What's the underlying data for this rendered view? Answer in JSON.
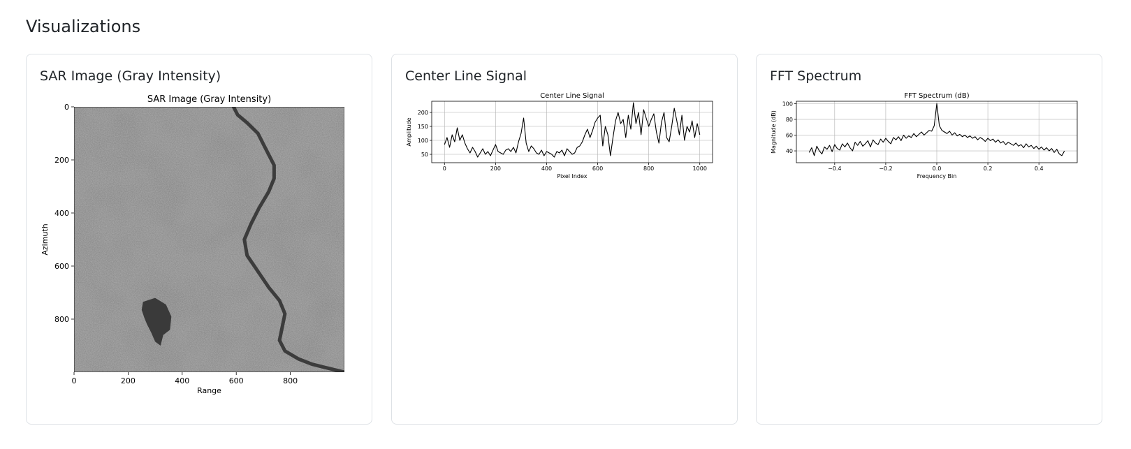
{
  "page": {
    "section_title": "Visualizations"
  },
  "cards": [
    {
      "id": "sar",
      "title": "SAR Image (Gray Intensity)"
    },
    {
      "id": "center",
      "title": "Center Line Signal"
    },
    {
      "id": "fft",
      "title": "FFT Spectrum"
    }
  ],
  "chart_data": [
    {
      "type": "heatmap",
      "title": "SAR Image (Gray Intensity)",
      "xlabel": "Range",
      "ylabel": "Azimuth",
      "xlim": [
        0,
        1000
      ],
      "ylim": [
        1000,
        0
      ],
      "xticks": [
        0,
        200,
        400,
        600,
        800
      ],
      "yticks": [
        0,
        200,
        400,
        600,
        800
      ],
      "colormap": "gray",
      "grid": false,
      "features": {
        "river": {
          "x": [
            590,
            605,
            640,
            680,
            700,
            720,
            740,
            740,
            720,
            685,
            655,
            630,
            640,
            680,
            720,
            760,
            780,
            770,
            760,
            780,
            830,
            880,
            920,
            960,
            1000
          ],
          "y": [
            0,
            30,
            60,
            100,
            140,
            180,
            220,
            270,
            320,
            380,
            440,
            500,
            560,
            620,
            680,
            730,
            780,
            830,
            880,
            920,
            950,
            970,
            980,
            990,
            1000
          ]
        },
        "lake": {
          "x": [
            255,
            300,
            340,
            360,
            355,
            330,
            320,
            300,
            285,
            270,
            260,
            250,
            255
          ],
          "y": [
            735,
            720,
            745,
            790,
            840,
            860,
            900,
            885,
            850,
            820,
            795,
            765,
            735
          ]
        }
      }
    },
    {
      "type": "line",
      "title": "Center Line Signal",
      "xlabel": "Pixel Index",
      "ylabel": "Amplitude",
      "xlim": [
        -50,
        1050
      ],
      "ylim": [
        20,
        240
      ],
      "xticks": [
        0,
        200,
        400,
        600,
        800,
        1000
      ],
      "yticks": [
        50,
        100,
        150,
        200
      ],
      "grid": true,
      "series": [
        {
          "color": "#000000",
          "x_start": 0,
          "x_step": 10,
          "values": [
            85,
            110,
            75,
            120,
            95,
            145,
            100,
            120,
            90,
            70,
            55,
            75,
            60,
            40,
            55,
            70,
            50,
            60,
            45,
            65,
            85,
            60,
            55,
            50,
            65,
            70,
            60,
            75,
            55,
            95,
            125,
            180,
            90,
            60,
            80,
            70,
            55,
            50,
            65,
            45,
            60,
            55,
            50,
            40,
            60,
            55,
            65,
            45,
            70,
            60,
            50,
            55,
            75,
            80,
            95,
            120,
            140,
            110,
            135,
            165,
            180,
            190,
            80,
            150,
            120,
            45,
            110,
            170,
            200,
            160,
            175,
            110,
            190,
            140,
            235,
            160,
            200,
            120,
            210,
            180,
            150,
            175,
            195,
            130,
            90,
            165,
            200,
            110,
            95,
            150,
            215,
            170,
            120,
            190,
            100,
            150,
            130,
            170,
            110,
            160,
            120
          ]
        }
      ]
    },
    {
      "type": "line",
      "title": "FFT Spectrum (dB)",
      "xlabel": "Frequency Bin",
      "ylabel": "Magnitude (dB)",
      "xlim": [
        -0.55,
        0.55
      ],
      "ylim": [
        25,
        103
      ],
      "xticks": [
        -0.4,
        -0.2,
        0.0,
        0.2,
        0.4
      ],
      "xtick_labels": [
        "−0.4",
        "−0.2",
        "0.0",
        "0.2",
        "0.4"
      ],
      "yticks": [
        40,
        60,
        80,
        100
      ],
      "grid": true,
      "series": [
        {
          "color": "#000000",
          "x_start": -0.5,
          "x_step": 0.01,
          "values": [
            38,
            44,
            34,
            46,
            40,
            36,
            45,
            42,
            47,
            39,
            48,
            43,
            41,
            49,
            45,
            50,
            44,
            40,
            51,
            47,
            52,
            46,
            49,
            53,
            45,
            54,
            50,
            48,
            55,
            51,
            56,
            52,
            49,
            57,
            54,
            58,
            53,
            60,
            56,
            59,
            57,
            62,
            58,
            61,
            64,
            60,
            63,
            66,
            65,
            72,
            100,
            72,
            66,
            64,
            62,
            65,
            60,
            63,
            59,
            61,
            58,
            60,
            57,
            59,
            56,
            58,
            54,
            57,
            55,
            52,
            56,
            53,
            55,
            51,
            54,
            50,
            52,
            48,
            51,
            49,
            47,
            50,
            46,
            48,
            44,
            49,
            45,
            47,
            43,
            46,
            42,
            45,
            41,
            44,
            40,
            43,
            38,
            42,
            36,
            34,
            40
          ]
        }
      ]
    }
  ]
}
